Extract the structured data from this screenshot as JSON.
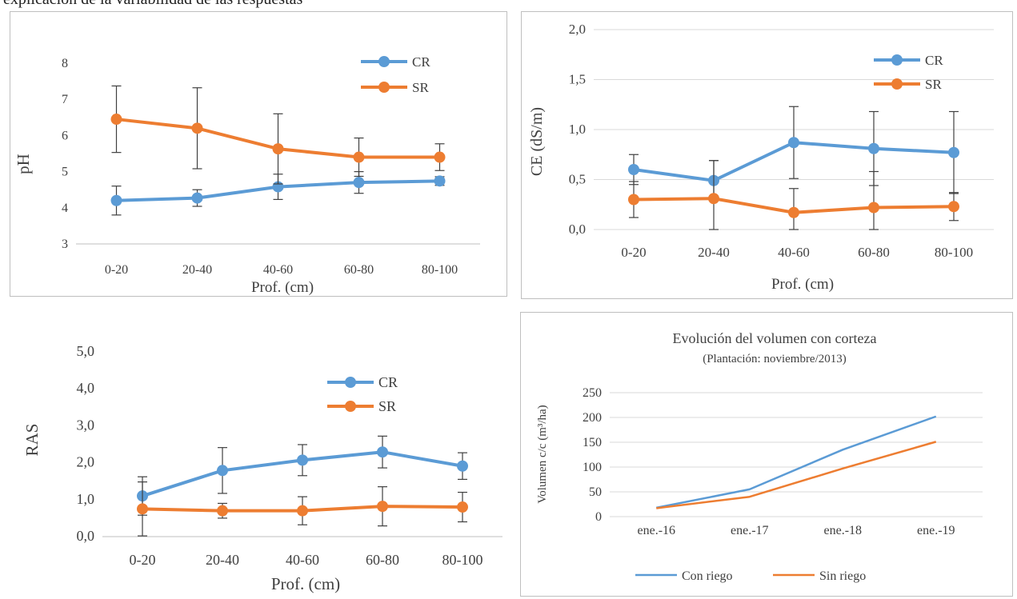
{
  "page": {
    "cropped_text": "explicación de la variabilidad de las respuestas"
  },
  "chart_data": [
    {
      "type": "line",
      "id": "ph",
      "ylabel": "pH",
      "xlabel": "Prof. (cm)",
      "categories": [
        "0-20",
        "20-40",
        "40-60",
        "60-80",
        "80-100"
      ],
      "ylim": [
        3,
        8
      ],
      "yticks": [
        "3",
        "4",
        "5",
        "6",
        "7",
        "8"
      ],
      "error_bars": true,
      "legend": "top-right",
      "series": [
        {
          "name": "CR",
          "color": "#5b9bd5",
          "values": [
            4.2,
            4.27,
            4.58,
            4.7,
            4.74
          ],
          "err": [
            0.4,
            0.23,
            0.35,
            0.3,
            0.12
          ]
        },
        {
          "name": "SR",
          "color": "#ed7d31",
          "values": [
            6.45,
            6.2,
            5.63,
            5.4,
            5.4
          ],
          "err": [
            0.92,
            1.12,
            0.97,
            0.53,
            0.37
          ]
        }
      ]
    },
    {
      "type": "line",
      "id": "ce",
      "ylabel": "CE (dS/m)",
      "xlabel": "Prof. (cm)",
      "categories": [
        "0-20",
        "20-40",
        "40-60",
        "60-80",
        "80-100"
      ],
      "ylim": [
        0,
        2
      ],
      "yticks": [
        "0,0",
        "0,5",
        "1,0",
        "1,5",
        "2,0"
      ],
      "error_bars": true,
      "legend": "top-right",
      "series": [
        {
          "name": "CR",
          "color": "#5b9bd5",
          "values": [
            0.6,
            0.49,
            0.87,
            0.81,
            0.77
          ],
          "err": [
            0.15,
            0.2,
            0.36,
            0.37,
            0.41
          ]
        },
        {
          "name": "SR",
          "color": "#ed7d31",
          "values": [
            0.3,
            0.31,
            0.17,
            0.22,
            0.23
          ],
          "err": [
            0.18,
            0.38,
            0.24,
            0.36,
            0.14
          ]
        }
      ]
    },
    {
      "type": "line",
      "id": "ras",
      "ylabel": "RAS",
      "xlabel": "Prof. (cm)",
      "categories": [
        "0-20",
        "20-40",
        "40-60",
        "60-80",
        "80-100"
      ],
      "ylim": [
        0,
        5
      ],
      "yticks": [
        "0,0",
        "1,0",
        "2,0",
        "3,0",
        "4,0",
        "5,0"
      ],
      "error_bars": true,
      "legend": "center-right",
      "series": [
        {
          "name": "CR",
          "color": "#5b9bd5",
          "values": [
            1.1,
            1.79,
            2.07,
            2.29,
            1.91
          ],
          "err": [
            0.52,
            0.62,
            0.42,
            0.43,
            0.36
          ]
        },
        {
          "name": "SR",
          "color": "#ed7d31",
          "values": [
            0.75,
            0.7,
            0.7,
            0.82,
            0.8
          ],
          "err": [
            0.73,
            0.2,
            0.38,
            0.53,
            0.4
          ]
        }
      ]
    },
    {
      "type": "line",
      "id": "vol",
      "title": "Evolución del volumen con corteza",
      "subtitle": "(Plantación:  noviembre/2013)",
      "ylabel": "Volumen c/c (m³/ha)",
      "xlabel": "",
      "categories": [
        "ene.-16",
        "ene.-17",
        "ene.-18",
        "ene.-19"
      ],
      "ylim": [
        0,
        250
      ],
      "yticks": [
        "0",
        "50",
        "100",
        "150",
        "200",
        "250"
      ],
      "error_bars": false,
      "legend": "bottom",
      "series": [
        {
          "name": "Con riego",
          "color": "#5b9bd5",
          "values": [
            18,
            55,
            135,
            202
          ]
        },
        {
          "name": "Sin riego",
          "color": "#ed7d31",
          "values": [
            17,
            40,
            97,
            151
          ]
        }
      ]
    }
  ]
}
